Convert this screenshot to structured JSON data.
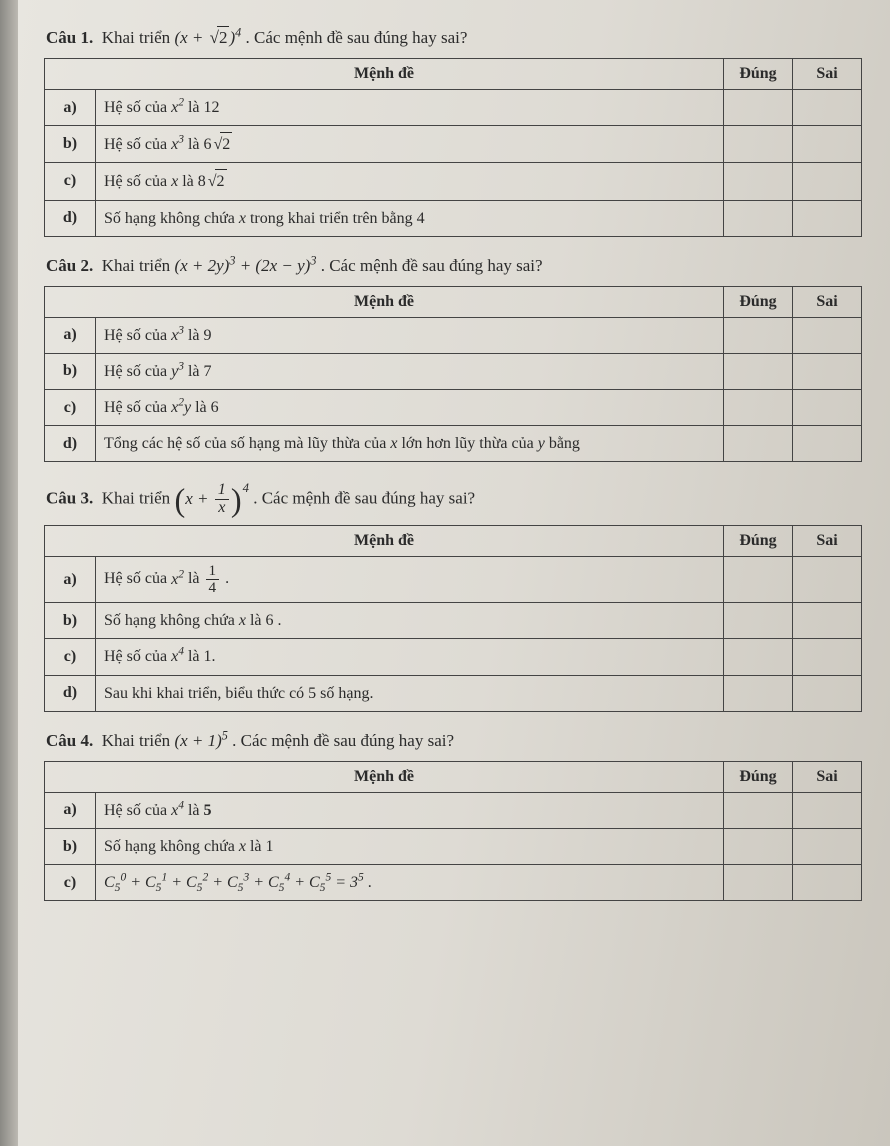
{
  "headers": {
    "menh_de": "Mệnh đề",
    "dung": "Đúng",
    "sai": "Sai"
  },
  "labels": {
    "a": "a)",
    "b": "b)",
    "c": "c)",
    "d": "d)"
  },
  "q1": {
    "title_prefix": "Câu 1.",
    "title_html": "Khai triển <span class=\"math\">(x + <span class=\"sqrt\"><span class=\"rad\">2</span></span>)<sup>4</sup></span> . Các mệnh đề sau đúng hay sai?",
    "rows": {
      "a": "Hệ số của <span class=\"math\">x<sup>2</sup></span> là 12",
      "b": "Hệ số của <span class=\"math\">x<sup>3</sup></span> là 6<span class=\"sqrt\"><span class=\"rad\">2</span></span>",
      "c": "Hệ số của <span class=\"math\">x</span> là 8<span class=\"sqrt\"><span class=\"rad\">2</span></span>",
      "d": "Số hạng không chứa <span class=\"math\">x</span> trong khai triển trên bằng 4"
    }
  },
  "q2": {
    "title_prefix": "Câu 2.",
    "title_html": "Khai triển <span class=\"math\">(x + 2y)<sup>3</sup> + (2x − y)<sup>3</sup></span> . Các mệnh đề sau đúng hay sai?",
    "rows": {
      "a": "Hệ số của <span class=\"math\">x<sup>3</sup></span> là 9",
      "b": "Hệ số của <span class=\"math\">y<sup>3</sup></span> là 7",
      "c": "Hệ số của <span class=\"math\">x<sup>2</sup>y</span> là 6",
      "d": "Tổng các hệ số của số hạng mà lũy thừa của <span class=\"math\">x</span> lớn hơn lũy thừa của <span class=\"math\">y</span> bằng"
    }
  },
  "q3": {
    "title_prefix": "Câu 3.",
    "title_html": "Khai triển <span class=\"math\"><span class=\"bigparen\">(</span>x + <span class=\"frac\"><span class=\"num\">1</span><span class=\"den\">x</span></span><span class=\"bigparen\">)</span><span class=\"parensup\">4</span></span> . Các mệnh đề sau đúng hay sai?",
    "rows": {
      "a": "Hệ số của <span class=\"math\">x<sup>2</sup></span> là <span class=\"frac\"><span class=\"num\">1</span><span class=\"den\">4</span></span> .",
      "b": "Số hạng không chứa <span class=\"math\">x</span> là 6 .",
      "c": "Hệ số của <span class=\"math\">x<sup>4</sup></span> là 1.",
      "d": "Sau khi khai triển, biểu thức có 5 số hạng."
    }
  },
  "q4": {
    "title_prefix": "Câu 4.",
    "title_html": "Khai triển <span class=\"math\">(x + 1)<sup>5</sup></span> . Các mệnh đề sau đúng hay sai?",
    "rows": {
      "a": "Hệ số của <span class=\"math\">x<sup>4</sup></span> là <b>5</b>",
      "b": "Số hạng không chứa <span class=\"math\">x</span> là 1",
      "c": "<span class=\"math\">C<sub>5</sub><sup>0</sup> + C<sub>5</sub><sup>1</sup> + C<sub>5</sub><sup>2</sup> + C<sub>5</sub><sup>3</sup> + C<sub>5</sub><sup>4</sup> + C<sub>5</sub><sup>5</sup> = 3<sup>5</sup></span> ."
    }
  }
}
